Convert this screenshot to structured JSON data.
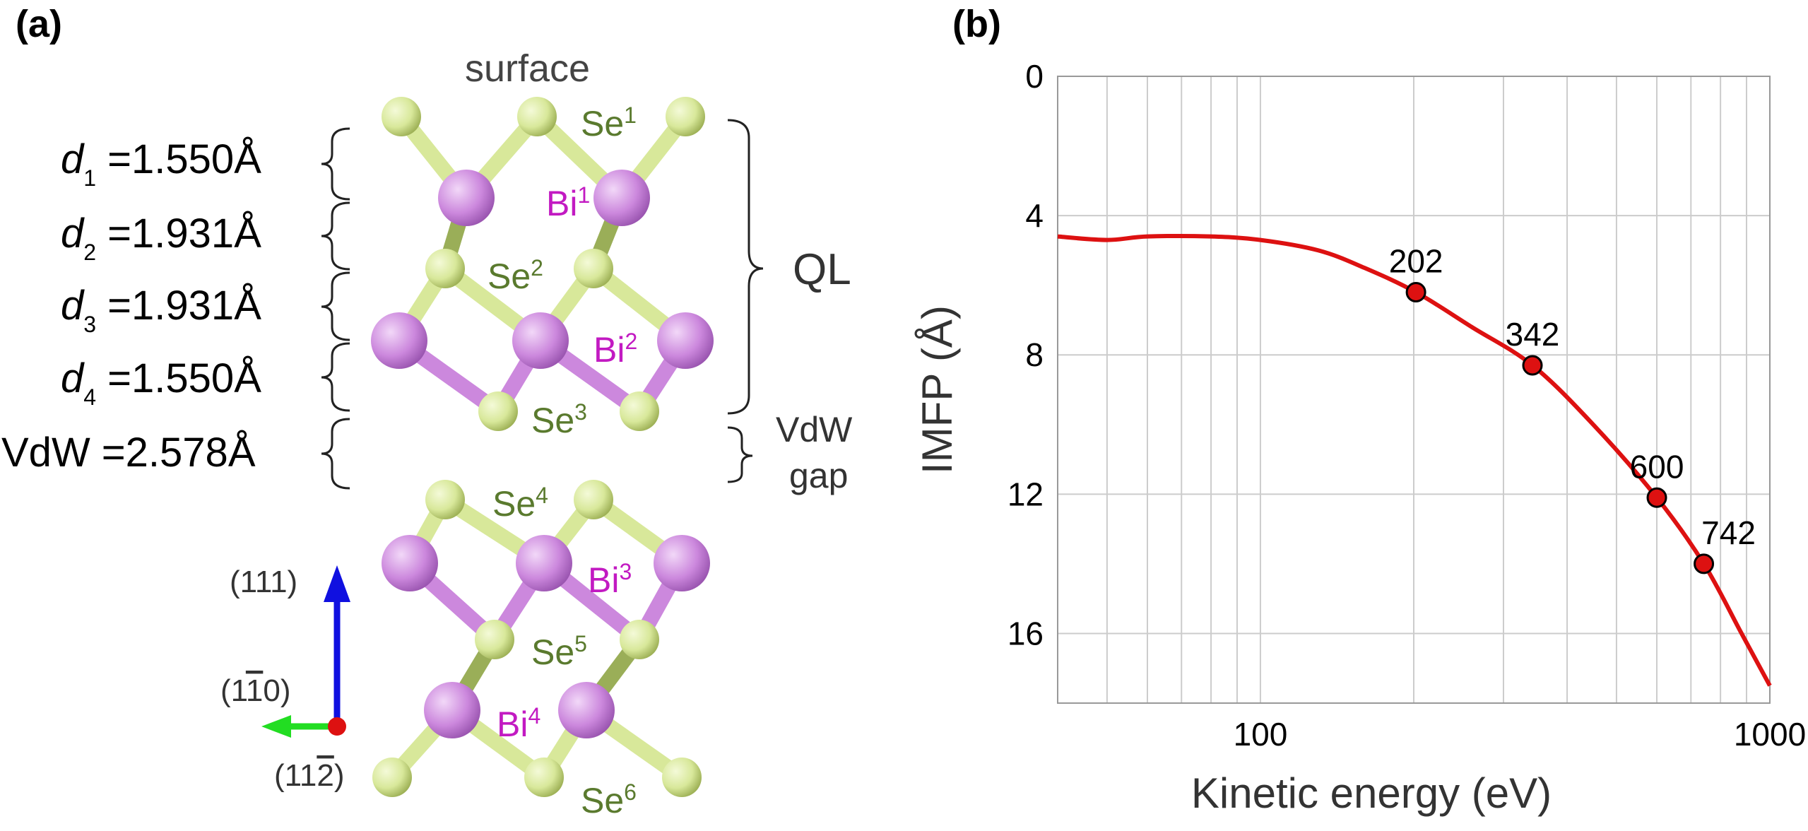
{
  "panel_a": {
    "label": "(a)",
    "surface_label": "surface",
    "distances": [
      {
        "sym": "d",
        "sub": "1",
        "val": " =1.550Å"
      },
      {
        "sym": "d",
        "sub": "2",
        "val": " =1.931Å"
      },
      {
        "sym": "d",
        "sub": "3",
        "val": " =1.931Å"
      },
      {
        "sym": "d",
        "sub": "4",
        "val": " =1.550Å"
      }
    ],
    "vdw_distance": {
      "name": "VdW",
      "val": " =2.578Å"
    },
    "atoms": [
      {
        "el": "Se",
        "n": "1",
        "kind": "se"
      },
      {
        "el": "Bi",
        "n": "1",
        "kind": "bi"
      },
      {
        "el": "Se",
        "n": "2",
        "kind": "se"
      },
      {
        "el": "Bi",
        "n": "2",
        "kind": "bi"
      },
      {
        "el": "Se",
        "n": "3",
        "kind": "se"
      },
      {
        "el": "Se",
        "n": "4",
        "kind": "se"
      },
      {
        "el": "Bi",
        "n": "3",
        "kind": "bi"
      },
      {
        "el": "Se",
        "n": "5",
        "kind": "se"
      },
      {
        "el": "Bi",
        "n": "4",
        "kind": "bi"
      },
      {
        "el": "Se",
        "n": "6",
        "kind": "se"
      }
    ],
    "ql_label": "QL",
    "vdw_gap_lines": [
      "VdW",
      "gap"
    ],
    "axes": {
      "vertical": "(111)",
      "horizontal": "(1",
      "horizontal_bar_digit": "1",
      "horizontal_end": "0)",
      "out_of_plane": "(11",
      "out_of_plane_bar_digit": "2",
      "out_of_plane_end": ")"
    },
    "colors": {
      "se": "#d8e89a",
      "bi": "#cc88dd",
      "se_text": "#5a7a2e",
      "bi_text": "#c21ac2",
      "arrow_vertical": "#1010e0",
      "arrow_horizontal": "#22dd22",
      "origin": "#dd1111"
    }
  },
  "panel_b": {
    "label": "(b)",
    "chart_data": {
      "type": "line",
      "xlabel": "Kinetic energy (eV)",
      "ylabel": "IMFP (Å)",
      "x_scale": "log",
      "xlim": [
        40,
        1000
      ],
      "ylim": [
        0,
        18
      ],
      "y_inverted": true,
      "xticks": [
        100,
        1000
      ],
      "xtick_labels": [
        "100",
        "1000"
      ],
      "yticks": [
        0,
        4,
        8,
        12,
        16
      ],
      "ytick_labels": [
        "0",
        "4",
        "8",
        "12",
        "16"
      ],
      "grid": true,
      "line_color": "#dd1111",
      "curve": {
        "x": [
          40,
          50,
          60,
          80,
          100,
          130,
          160,
          202,
          260,
          342,
          450,
          600,
          742,
          880,
          1000
        ],
        "y": [
          4.6,
          4.7,
          4.6,
          4.6,
          4.7,
          5.0,
          5.5,
          6.2,
          7.2,
          8.3,
          10.0,
          12.1,
          14.0,
          16.0,
          17.5
        ]
      },
      "points": {
        "x": [
          202,
          342,
          600,
          742
        ],
        "y": [
          6.2,
          8.3,
          12.1,
          14.0
        ],
        "labels": [
          "202",
          "342",
          "600",
          "742"
        ]
      }
    }
  }
}
